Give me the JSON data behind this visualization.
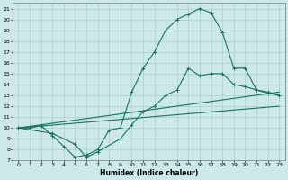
{
  "xlabel": "Humidex (Indice chaleur)",
  "background_color": "#cce8e8",
  "grid_color": "#aacece",
  "line_color": "#1a7060",
  "xlim": [
    -0.5,
    23.5
  ],
  "ylim": [
    7,
    21.5
  ],
  "xticks": [
    0,
    1,
    2,
    3,
    4,
    5,
    6,
    7,
    8,
    9,
    10,
    11,
    12,
    13,
    14,
    15,
    16,
    17,
    18,
    19,
    20,
    21,
    22,
    23
  ],
  "yticks": [
    7,
    8,
    9,
    10,
    11,
    12,
    13,
    14,
    15,
    16,
    17,
    18,
    19,
    20,
    21
  ],
  "line1_x": [
    0,
    1,
    2,
    3,
    4,
    5,
    6,
    7,
    8,
    9,
    10,
    11,
    12,
    13,
    14,
    15,
    16,
    17,
    18,
    19,
    20,
    21,
    22,
    23
  ],
  "line1_y": [
    10.0,
    10.0,
    10.2,
    9.3,
    8.3,
    7.3,
    7.5,
    8.0,
    9.8,
    10.0,
    13.3,
    15.5,
    17.0,
    19.0,
    20.0,
    20.5,
    21.0,
    20.6,
    18.8,
    15.5,
    15.5,
    13.5,
    13.2,
    13.0
  ],
  "line2_x": [
    0,
    3,
    5,
    6,
    7,
    9,
    10,
    11,
    12,
    13,
    14,
    15,
    16,
    17,
    18,
    19,
    20,
    21,
    22,
    23
  ],
  "line2_y": [
    10.0,
    9.5,
    8.5,
    7.3,
    7.8,
    9.0,
    10.3,
    11.5,
    12.0,
    13.0,
    13.5,
    15.5,
    14.8,
    15.0,
    15.0,
    14.0,
    13.8,
    13.5,
    13.3,
    13.0
  ],
  "line3_x": [
    0,
    23
  ],
  "line3_y": [
    10.0,
    13.3
  ],
  "line4_x": [
    0,
    23
  ],
  "line4_y": [
    10.0,
    12.0
  ]
}
